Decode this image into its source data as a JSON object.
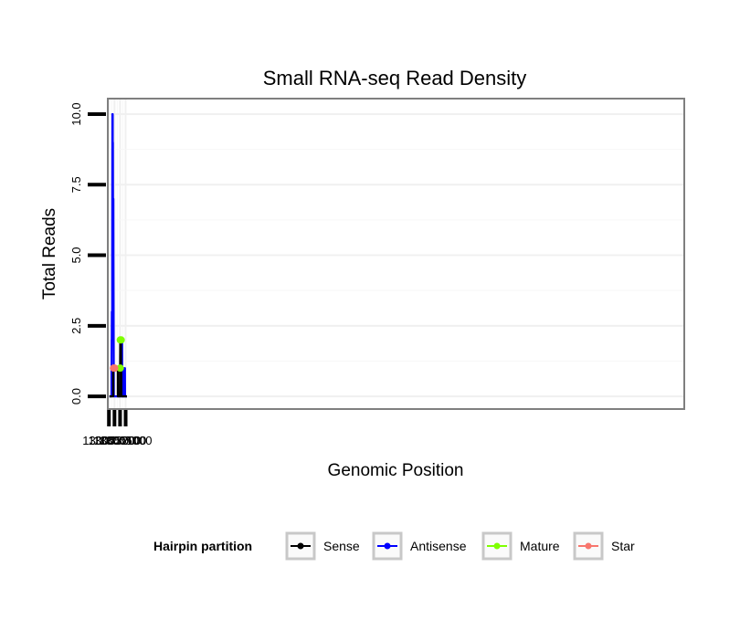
{
  "chart_data": {
    "type": "line",
    "title": "Small RNA-seq Read Density",
    "xlabel": "Genomic Position",
    "ylabel": "Total Reads",
    "x_reversed": true,
    "xlim": [
      13005320,
      12994975
    ],
    "ylim": [
      -0.45,
      10.55
    ],
    "x_ticks": [
      13005300,
      13005200,
      13005100,
      13005000
    ],
    "x_tick_labels": [
      "13005300",
      "13005200",
      "13005100",
      "13005000"
    ],
    "y_ticks": [
      0,
      2.5,
      5,
      7.5,
      10
    ],
    "y_tick_labels": [
      "0.0",
      "2.5",
      "5.0",
      "7.5",
      "10.0"
    ],
    "grid": true,
    "legend": {
      "title": "Hairpin partition",
      "position": "bottom",
      "entries": [
        "Sense",
        "Antisense",
        "Mature",
        "Star"
      ]
    },
    "series": [
      {
        "name": "Sense",
        "color": "#000000",
        "style": "line",
        "x": [
          13005290,
          13005224,
          13005223,
          13005219,
          13005216,
          13005161,
          13005160,
          13005140,
          13005139,
          13005100,
          13005098,
          13005095,
          13005085,
          13005083,
          13005079,
          13005077,
          13004975
        ],
        "y": [
          0,
          0,
          1,
          1,
          1,
          1,
          1,
          1,
          0,
          0,
          1,
          2,
          2,
          1,
          1,
          0,
          0
        ]
      },
      {
        "name": "Antisense",
        "color": "#0000ff",
        "style": "line",
        "x": [
          13005290,
          13005255,
          13005254,
          13005252,
          13005251,
          13005249,
          13005248,
          13005242,
          13005241,
          13005238,
          13005236,
          13005232,
          13005231,
          13005228,
          13005227,
          13005220,
          13005219,
          13005212,
          13005211,
          13005083,
          13005082,
          13005062,
          13005061,
          13005030,
          13005029,
          13005011,
          13005010,
          13004975
        ],
        "y": [
          0,
          0,
          1,
          1,
          2,
          2,
          3,
          3,
          5,
          10,
          10,
          10,
          9,
          9,
          7,
          7,
          5,
          0,
          0,
          0,
          2,
          2,
          0,
          0,
          1,
          1,
          0,
          0
        ]
      },
      {
        "name": "Mature",
        "color": "#7fff00",
        "style": "segments",
        "segments": [
          {
            "x": [
              13005100,
              13005096
            ],
            "y": [
              1,
              1
            ]
          },
          {
            "x": [
              13005096,
              13005080
            ],
            "y": [
              2,
              2
            ]
          }
        ]
      },
      {
        "name": "Star",
        "color": "#f8766d",
        "style": "segments",
        "segments": [
          {
            "x": [
              13005218,
              13005196
            ],
            "y": [
              1,
              1
            ]
          }
        ]
      }
    ]
  }
}
